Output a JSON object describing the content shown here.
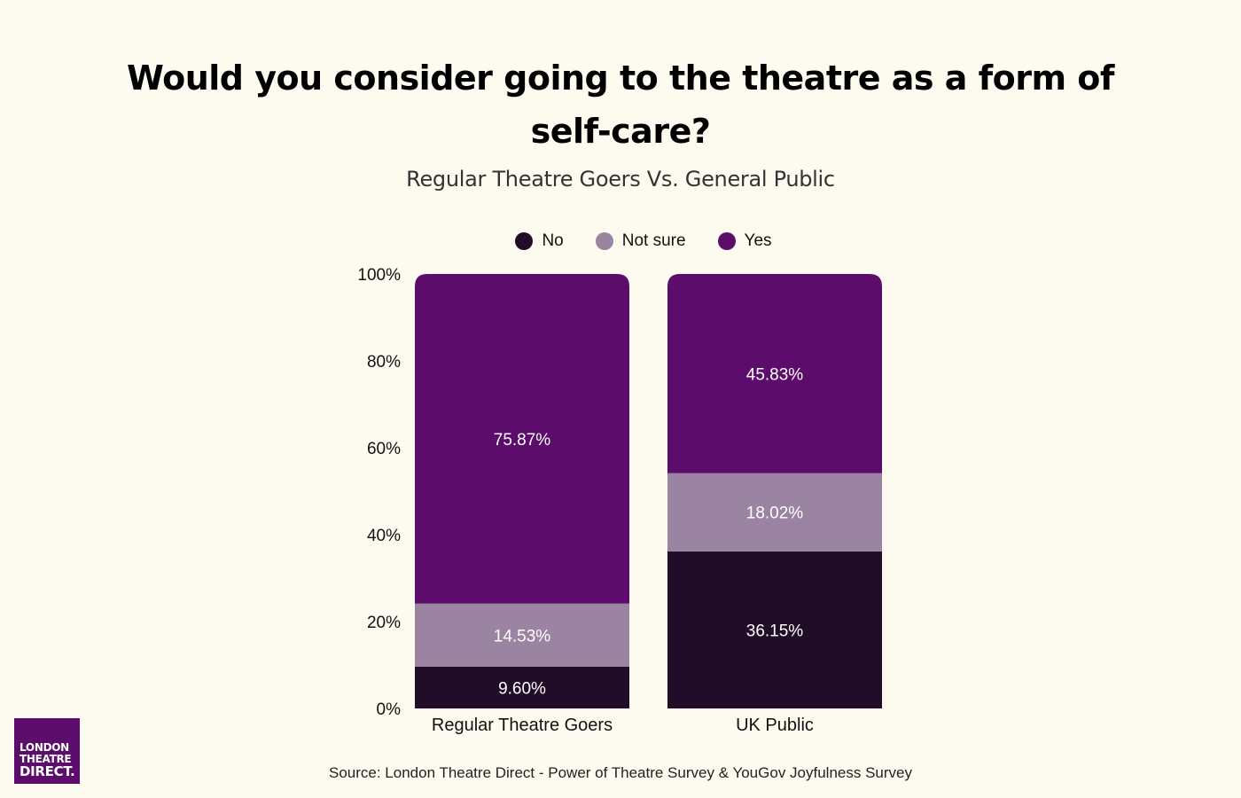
{
  "title": "Would you consider going to the theatre as a form of self-care?",
  "subtitle": "Regular Theatre Goers Vs. General Public",
  "source": "Source: London Theatre Direct - Power of Theatre Survey & YouGov Joyfulness Survey",
  "logo": {
    "line1": "LONDON",
    "line2": "THEATRE",
    "line3": "DIRECT."
  },
  "legend": [
    {
      "label": "No",
      "color": "#220d28"
    },
    {
      "label": "Not sure",
      "color": "#9b84a1"
    },
    {
      "label": "Yes",
      "color": "#5c0d6b"
    }
  ],
  "chart_data": {
    "type": "bar",
    "stacked": true,
    "categories": [
      "Regular Theatre Goers",
      "UK Public"
    ],
    "series": [
      {
        "name": "No",
        "values": [
          9.6,
          36.15
        ],
        "labels": [
          "9.60%",
          "36.15%"
        ],
        "color": "#220d28"
      },
      {
        "name": "Not sure",
        "values": [
          14.53,
          18.02
        ],
        "labels": [
          "14.53%",
          "18.02%"
        ],
        "color": "#9b84a1"
      },
      {
        "name": "Yes",
        "values": [
          75.87,
          45.83
        ],
        "labels": [
          "75.87%",
          "45.83%"
        ],
        "color": "#5c0d6b"
      }
    ],
    "ylim": [
      0,
      100
    ],
    "yticks": [
      "0%",
      "20%",
      "40%",
      "60%",
      "80%",
      "100%"
    ],
    "grid": false,
    "legend_position": "top"
  }
}
